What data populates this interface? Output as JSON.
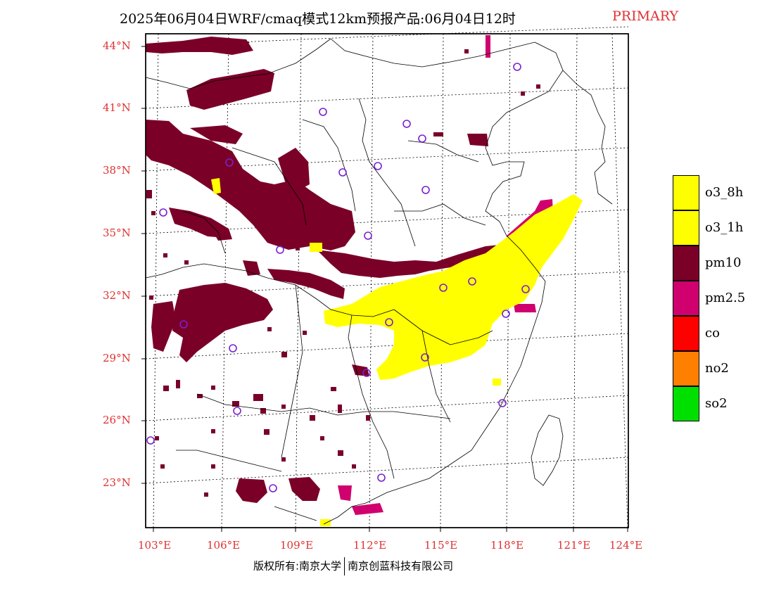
{
  "header": {
    "title": "2025年06月04日WRF/cmaq模式12km预报产品:06月04日12时",
    "tag": "PRIMARY"
  },
  "axes": {
    "lat_labels": [
      "44°N",
      "41°N",
      "38°N",
      "35°N",
      "32°N",
      "29°N",
      "26°N",
      "23°N"
    ],
    "lon_labels": [
      "103°E",
      "106°E",
      "109°E",
      "112°E",
      "115°E",
      "118°E",
      "121°E",
      "124°E"
    ]
  },
  "legend": {
    "items": [
      {
        "label": "o3_8h",
        "color": "#ffff00"
      },
      {
        "label": "o3_1h",
        "color": "#ffff00"
      },
      {
        "label": "pm10",
        "color": "#7a0028"
      },
      {
        "label": "pm2.5",
        "color": "#d0006f"
      },
      {
        "label": "co",
        "color": "#ff0000"
      },
      {
        "label": "no2",
        "color": "#ff7f00"
      },
      {
        "label": "so2",
        "color": "#00e000"
      }
    ]
  },
  "footer": {
    "copyright_left": "版权所有:南京大学",
    "copyright_right": "南京创蓝科技有限公司"
  },
  "colors": {
    "label_red": "#e03030",
    "pm10": "#7a0028",
    "pm25": "#d0006f",
    "o3": "#ffff00",
    "station": "#7a20d0"
  }
}
